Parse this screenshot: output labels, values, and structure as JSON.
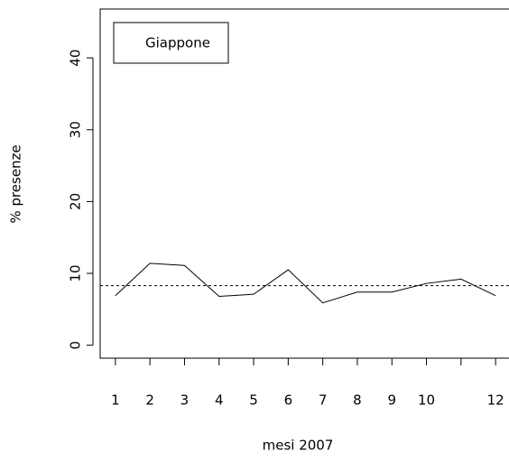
{
  "chart_data": {
    "type": "line",
    "x_label": "mesi 2007",
    "y_label": "% presenze",
    "x": [
      1,
      2,
      3,
      4,
      5,
      6,
      7,
      8,
      9,
      10,
      11,
      12
    ],
    "series": [
      {
        "name": "Giappone",
        "color": "#000000",
        "values": [
          6.9,
          11.4,
          11.1,
          6.8,
          7.1,
          10.5,
          5.9,
          7.4,
          7.4,
          8.6,
          9.2,
          6.9
        ]
      }
    ],
    "reference_line": 8.3,
    "xlim": [
      0.56,
      12.44
    ],
    "ylim": [
      -1.8,
      46.8
    ],
    "xticks": [
      1,
      2,
      3,
      4,
      5,
      6,
      7,
      8,
      9,
      10,
      {
        "value": 11,
        "label": null
      },
      12
    ],
    "yticks": [
      0,
      10,
      20,
      30,
      40
    ],
    "legend": "top-left"
  }
}
